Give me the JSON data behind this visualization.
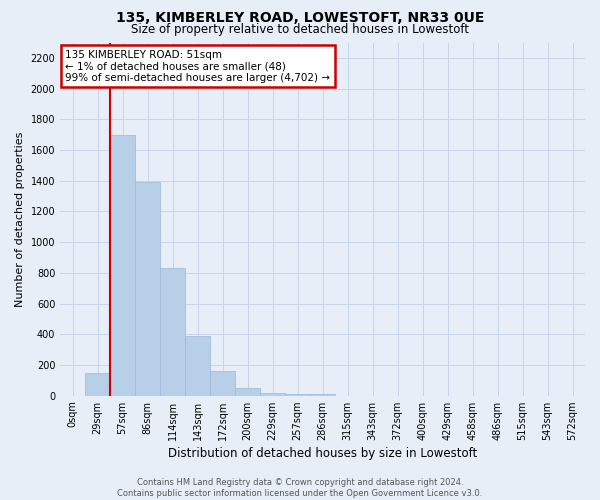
{
  "title": "135, KIMBERLEY ROAD, LOWESTOFT, NR33 0UE",
  "subtitle": "Size of property relative to detached houses in Lowestoft",
  "xlabel": "Distribution of detached houses by size in Lowestoft",
  "ylabel": "Number of detached properties",
  "bar_labels": [
    "0sqm",
    "29sqm",
    "57sqm",
    "86sqm",
    "114sqm",
    "143sqm",
    "172sqm",
    "200sqm",
    "229sqm",
    "257sqm",
    "286sqm",
    "315sqm",
    "343sqm",
    "372sqm",
    "400sqm",
    "429sqm",
    "458sqm",
    "486sqm",
    "515sqm",
    "543sqm",
    "572sqm"
  ],
  "bar_values": [
    0,
    150,
    1700,
    1390,
    830,
    390,
    160,
    50,
    20,
    10,
    10,
    0,
    0,
    0,
    0,
    0,
    0,
    0,
    0,
    0,
    0
  ],
  "bar_color": "#b8cfe8",
  "bar_edge_color": "#9ab8d8",
  "grid_color": "#c8d4e8",
  "background_color": "#e8eef8",
  "red_line_x": 1.5,
  "annotation_text": "135 KIMBERLEY ROAD: 51sqm\n← 1% of detached houses are smaller (48)\n99% of semi-detached houses are larger (4,702) →",
  "annotation_box_color": "#ffffff",
  "annotation_border_color": "#cc0000",
  "ylim": [
    0,
    2300
  ],
  "yticks": [
    0,
    200,
    400,
    600,
    800,
    1000,
    1200,
    1400,
    1600,
    1800,
    2000,
    2200
  ],
  "footer_line1": "Contains HM Land Registry data © Crown copyright and database right 2024.",
  "footer_line2": "Contains public sector information licensed under the Open Government Licence v3.0."
}
